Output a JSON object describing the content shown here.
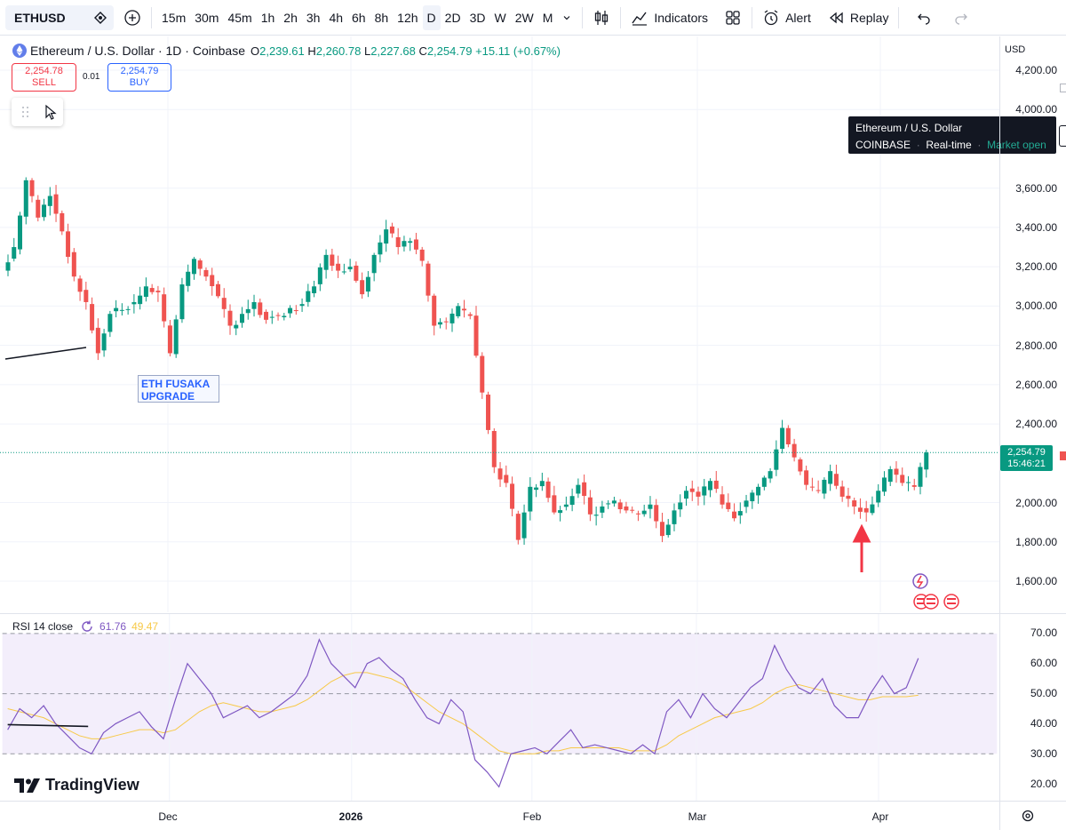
{
  "toolbar": {
    "symbol": "ETHUSD",
    "intervals": [
      "15m",
      "30m",
      "45m",
      "1h",
      "2h",
      "3h",
      "4h",
      "6h",
      "8h",
      "12h",
      "D",
      "2D",
      "3D",
      "W",
      "2W",
      "M"
    ],
    "active_interval": "D",
    "indicators_label": "Indicators",
    "alert_label": "Alert",
    "replay_label": "Replay"
  },
  "legend": {
    "title": "Ethereum / U.S. Dollar · 1D · Coinbase",
    "o_label": "O",
    "o_value": "2,239.61",
    "h_label": "H",
    "h_value": "2,260.78",
    "l_label": "L",
    "l_value": "2,227.68",
    "c_label": "C",
    "c_value": "2,254.79",
    "change": "+15.11 (+0.67%)"
  },
  "trade": {
    "sell_price": "2,254.78",
    "sell_label": "SELL",
    "spread": "0.01",
    "buy_price": "2,254.79",
    "buy_label": "BUY"
  },
  "tooltip": {
    "title": "Ethereum / U.S. Dollar",
    "exchange": "COINBASE",
    "feed": "Real-time",
    "status": "Market open"
  },
  "currency": "USD",
  "last_price": {
    "price": "2,254.79",
    "countdown": "15:46:21"
  },
  "annotation": {
    "line1": "ETH FUSAKA",
    "line2": "UPGRADE"
  },
  "rsi_legend": {
    "label": "RSI 14 close",
    "rsi_value": "61.76",
    "ma_value": "49.47"
  },
  "logo_text": "TradingView",
  "colors": {
    "up": "#089981",
    "down": "#ef5350",
    "rsi_line": "#7e57c2",
    "rsi_ma": "#f7c948",
    "accent": "#2962ff"
  },
  "chart_data": [
    {
      "type": "candlestick",
      "title": "Ethereum / U.S. Dollar · 1D · Coinbase",
      "y_ticks": [
        "4,200.00",
        "4,000.00",
        "3,600.00",
        "3,400.00",
        "3,200.00",
        "3,000.00",
        "2,800.00",
        "2,600.00",
        "2,400.00",
        "2,000.00",
        "1,800.00",
        "1,600.00"
      ],
      "ylim": [
        1440,
        4260
      ],
      "x_ticks": [
        "Dec",
        "2026",
        "Feb",
        "Mar",
        "Apr"
      ],
      "close_path": [
        3300,
        3640,
        3450,
        3560,
        3380,
        3150,
        3020,
        2760,
        2960,
        2980,
        3020,
        3100,
        3070,
        2760,
        3110,
        3240,
        3150,
        3050,
        2900,
        2960,
        3020,
        2930,
        2950,
        2990,
        3010,
        3100,
        3260,
        3180,
        3200,
        3060,
        3260,
        3390,
        3300,
        3330,
        3230,
        2900,
        2920,
        3000,
        2950,
        2560,
        2180,
        2100,
        1810,
        2080,
        2110,
        1950,
        1990,
        2090,
        1940,
        1980,
        2010,
        1960,
        1940,
        1990,
        1830,
        1960,
        2060,
        2030,
        2110,
        1990,
        1920,
        2010,
        2080,
        2160,
        2380,
        2230,
        2090,
        2060,
        2160,
        2030,
        1980,
        1950,
        2060,
        2170,
        2100,
        2080,
        2254.79
      ],
      "last_price": 2254.79
    },
    {
      "type": "line",
      "title": "RSI 14 close",
      "y_ticks": [
        "70.00",
        "60.00",
        "50.00",
        "40.00",
        "30.00",
        "20.00"
      ],
      "ylim": [
        16,
        74
      ],
      "series": [
        {
          "name": "RSI",
          "values": [
            38,
            45,
            42,
            46,
            40,
            36,
            32,
            30,
            37,
            40,
            42,
            44,
            39,
            35,
            48,
            60,
            55,
            50,
            42,
            44,
            46,
            42,
            44,
            47,
            50,
            56,
            68,
            60,
            56,
            52,
            60,
            62,
            58,
            55,
            48,
            42,
            40,
            48,
            44,
            28,
            24,
            19,
            30,
            31,
            32,
            30,
            34,
            38,
            32,
            33,
            32,
            31,
            30,
            33,
            30,
            44,
            48,
            42,
            50,
            45,
            42,
            47,
            52,
            55,
            66,
            58,
            52,
            50,
            55,
            46,
            42,
            42,
            50,
            56,
            50,
            52,
            61.76
          ]
        },
        {
          "name": "MA",
          "values": [
            45,
            44,
            43,
            42,
            40,
            38,
            36,
            35,
            35,
            36,
            37,
            38,
            38,
            37,
            38,
            41,
            44,
            46,
            47,
            46,
            45,
            44,
            44,
            45,
            46,
            48,
            51,
            54,
            56,
            57,
            57,
            56,
            55,
            53,
            50,
            47,
            44,
            42,
            40,
            37,
            34,
            31,
            30,
            30,
            30,
            31,
            31,
            32,
            32,
            32,
            32,
            32,
            31,
            31,
            31,
            33,
            36,
            38,
            40,
            42,
            43,
            44,
            45,
            47,
            50,
            52,
            53,
            52,
            51,
            50,
            49,
            48,
            48,
            49,
            49,
            49,
            49.47
          ]
        }
      ],
      "levels": [
        70,
        50,
        30
      ]
    }
  ]
}
